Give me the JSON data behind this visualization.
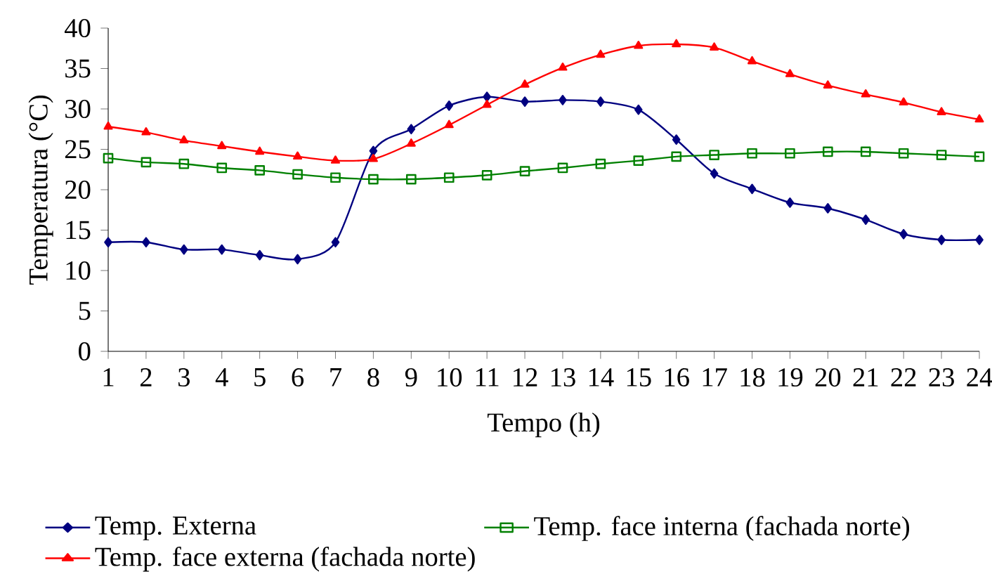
{
  "chart_data": {
    "type": "line",
    "xlabel": "Tempo (h)",
    "ylabel": "Temperatura (°C)",
    "categories": [
      "1",
      "2",
      "3",
      "4",
      "5",
      "6",
      "7",
      "8",
      "9",
      "10",
      "11",
      "12",
      "13",
      "14",
      "15",
      "16",
      "17",
      "18",
      "19",
      "20",
      "21",
      "22",
      "23",
      "24"
    ],
    "ylim": [
      0,
      40
    ],
    "yticks": [
      0,
      5,
      10,
      15,
      20,
      25,
      30,
      35,
      40
    ],
    "legend": "bottom",
    "grid": false,
    "series": [
      {
        "name": "Temp. Externa",
        "color": "#000080",
        "marker": "diamond",
        "values": [
          13.5,
          13.5,
          12.6,
          12.6,
          11.9,
          11.4,
          13.5,
          24.8,
          27.5,
          30.4,
          31.5,
          30.9,
          31.1,
          30.9,
          29.9,
          26.2,
          22.0,
          20.1,
          18.4,
          17.7,
          16.3,
          14.5,
          13.8,
          13.8
        ]
      },
      {
        "name": "Temp. face interna (fachada norte)",
        "color": "#008000",
        "marker": "square",
        "values": [
          23.9,
          23.4,
          23.2,
          22.7,
          22.4,
          21.9,
          21.5,
          21.3,
          21.3,
          21.5,
          21.8,
          22.3,
          22.7,
          23.2,
          23.6,
          24.1,
          24.3,
          24.5,
          24.5,
          24.7,
          24.7,
          24.5,
          24.3,
          24.1
        ]
      },
      {
        "name": "Temp. face externa (fachada norte)",
        "color": "#ff0000",
        "marker": "triangle",
        "values": [
          27.8,
          27.1,
          26.1,
          25.4,
          24.7,
          24.1,
          23.6,
          23.8,
          25.7,
          28.0,
          30.5,
          33.0,
          35.1,
          36.7,
          37.8,
          38.0,
          37.6,
          35.9,
          34.3,
          32.9,
          31.8,
          30.8,
          29.6,
          28.7
        ]
      }
    ]
  }
}
